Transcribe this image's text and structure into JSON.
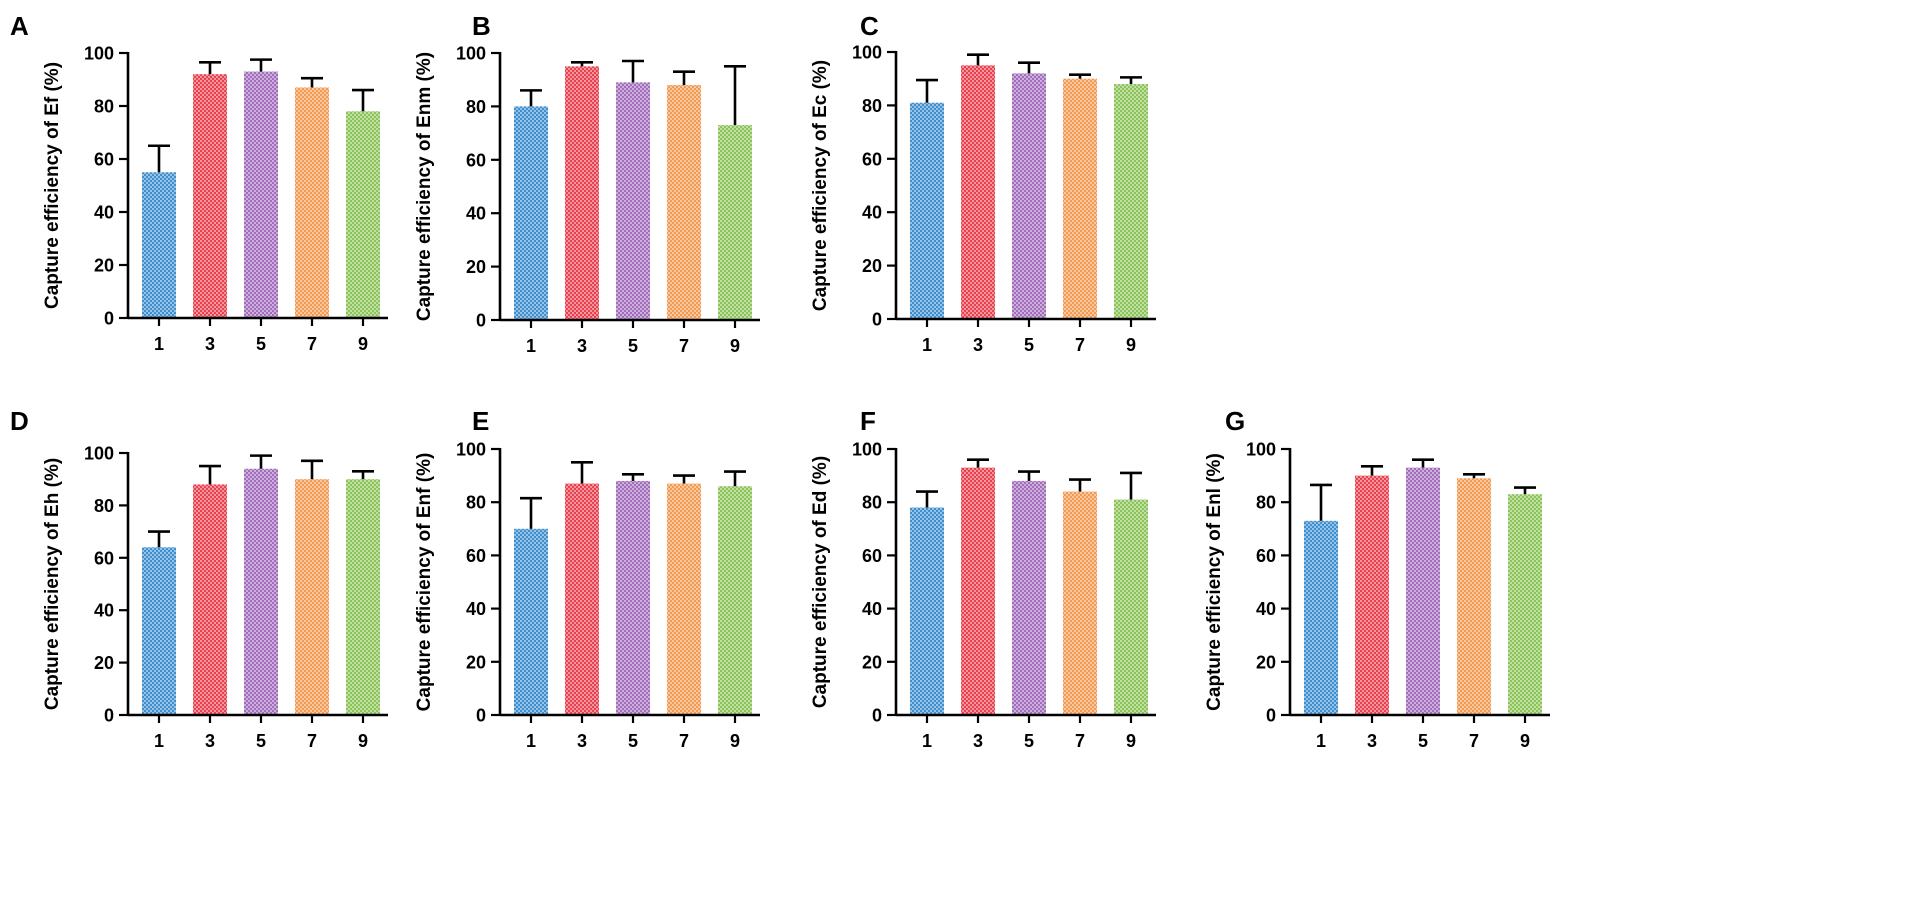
{
  "colors": {
    "1": "#3f8fcf",
    "3": "#e8404e",
    "5": "#a26dbb",
    "7": "#f29a52",
    "9": "#8cc45a"
  },
  "chart_data": [
    {
      "type": "bar",
      "panel": "A",
      "title": "",
      "ylabel": "Capture efficiency of Ef (%)",
      "xlabel": "",
      "categories": [
        "1",
        "3",
        "5",
        "7",
        "9"
      ],
      "values": [
        55,
        92,
        93,
        87,
        78
      ],
      "errors": [
        10,
        4.5,
        4.5,
        3.5,
        8
      ],
      "ylim": [
        0,
        100
      ],
      "yticks": [
        "0",
        "20",
        "40",
        "60",
        "80",
        "100"
      ]
    },
    {
      "type": "bar",
      "panel": "B",
      "title": "",
      "ylabel": "Capture efficiency of Enm (%)",
      "xlabel": "",
      "categories": [
        "1",
        "3",
        "5",
        "7",
        "9"
      ],
      "values": [
        80,
        95,
        89,
        88,
        73
      ],
      "errors": [
        6,
        1.5,
        8,
        5,
        22
      ],
      "ylim": [
        0,
        100
      ],
      "yticks": [
        "0",
        "20",
        "40",
        "60",
        "80",
        "100"
      ]
    },
    {
      "type": "bar",
      "panel": "C",
      "title": "",
      "ylabel": "Capture efficiency of Ec (%)",
      "xlabel": "",
      "categories": [
        "1",
        "3",
        "5",
        "7",
        "9"
      ],
      "values": [
        81,
        95,
        92,
        90,
        88
      ],
      "errors": [
        8.5,
        4,
        4,
        1.5,
        2.5
      ],
      "ylim": [
        0,
        100
      ],
      "yticks": [
        "0",
        "20",
        "40",
        "60",
        "80",
        "100"
      ]
    },
    {
      "type": "bar",
      "panel": "D",
      "title": "",
      "ylabel": "Capture efficiency of Eh (%)",
      "xlabel": "",
      "categories": [
        "1",
        "3",
        "5",
        "7",
        "9"
      ],
      "values": [
        64,
        88,
        94,
        90,
        90
      ],
      "errors": [
        6,
        7,
        5,
        7,
        3
      ],
      "ylim": [
        0,
        100
      ],
      "yticks": [
        "0",
        "20",
        "40",
        "60",
        "80",
        "100"
      ]
    },
    {
      "type": "bar",
      "panel": "E",
      "title": "",
      "ylabel": "Capture efficiency of Enf (%)",
      "xlabel": "",
      "categories": [
        "1",
        "3",
        "5",
        "7",
        "9"
      ],
      "values": [
        70,
        87,
        88,
        87,
        86
      ],
      "errors": [
        11.5,
        8,
        2.5,
        3,
        5.5
      ],
      "ylim": [
        0,
        100
      ],
      "yticks": [
        "0",
        "20",
        "40",
        "60",
        "80",
        "100"
      ]
    },
    {
      "type": "bar",
      "panel": "F",
      "title": "",
      "ylabel": "Capture efficiency of Ed (%)",
      "xlabel": "",
      "categories": [
        "1",
        "3",
        "5",
        "7",
        "9"
      ],
      "values": [
        78,
        93,
        88,
        84,
        81
      ],
      "errors": [
        6,
        3,
        3.5,
        4.5,
        10
      ],
      "ylim": [
        0,
        100
      ],
      "yticks": [
        "0",
        "20",
        "40",
        "60",
        "80",
        "100"
      ]
    },
    {
      "type": "bar",
      "panel": "G",
      "title": "",
      "ylabel": "Capture efficiency of Enl (%)",
      "xlabel": "",
      "categories": [
        "1",
        "3",
        "5",
        "7",
        "9"
      ],
      "values": [
        73,
        90,
        93,
        89,
        83
      ],
      "errors": [
        13.5,
        3.5,
        3,
        1.5,
        2.5
      ],
      "ylim": [
        0,
        100
      ],
      "yticks": [
        "0",
        "20",
        "40",
        "60",
        "80",
        "100"
      ]
    }
  ]
}
